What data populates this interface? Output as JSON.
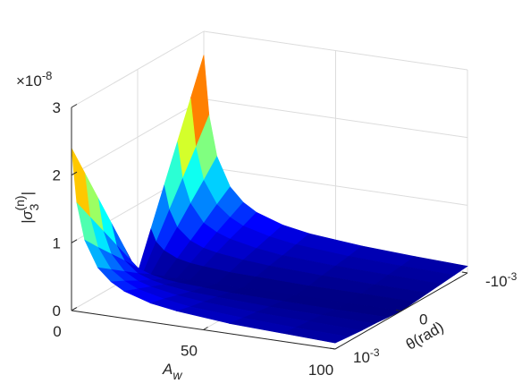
{
  "chart_data": {
    "type": "surface",
    "zlabel": {
      "text": "|σ",
      "sub": "3",
      "sup": "(n)",
      "end": "|"
    },
    "xlabel": {
      "text": "A",
      "sub": "w"
    },
    "ylabel": "θ(rad)",
    "z_multiplier": {
      "text": "×10",
      "exponent": "-8"
    },
    "x": [
      0,
      2,
      5,
      10,
      15,
      20,
      30,
      40,
      60,
      80,
      100
    ],
    "y": [
      -0.001,
      -0.0008,
      -0.0006,
      -0.0004,
      -0.0002,
      0,
      0.0002,
      0.0004,
      0.0006,
      0.0008,
      0.001
    ],
    "z": [
      [
        2.65,
        2.12,
        1.59,
        1.06,
        0.53,
        0,
        0.48,
        0.96,
        1.44,
        1.92,
        2.4
      ],
      [
        1.77,
        1.41,
        1.06,
        0.71,
        0.35,
        0,
        0.32,
        0.64,
        0.96,
        1.28,
        1.6
      ],
      [
        1.18,
        0.94,
        0.71,
        0.47,
        0.24,
        0,
        0.21,
        0.43,
        0.64,
        0.85,
        1.07
      ],
      [
        0.76,
        0.61,
        0.45,
        0.3,
        0.15,
        0,
        0.14,
        0.27,
        0.41,
        0.55,
        0.69
      ],
      [
        0.56,
        0.45,
        0.34,
        0.22,
        0.11,
        0,
        0.1,
        0.2,
        0.3,
        0.41,
        0.51
      ],
      [
        0.44,
        0.35,
        0.27,
        0.18,
        0.09,
        0,
        0.08,
        0.16,
        0.24,
        0.32,
        0.4
      ],
      [
        0.31,
        0.25,
        0.19,
        0.13,
        0.06,
        0,
        0.06,
        0.11,
        0.17,
        0.23,
        0.28
      ],
      [
        0.24,
        0.19,
        0.14,
        0.1,
        0.05,
        0,
        0.04,
        0.09,
        0.13,
        0.17,
        0.22
      ],
      [
        0.17,
        0.13,
        0.1,
        0.07,
        0.03,
        0,
        0.03,
        0.06,
        0.09,
        0.12,
        0.15
      ],
      [
        0.13,
        0.1,
        0.08,
        0.05,
        0.03,
        0,
        0.02,
        0.05,
        0.07,
        0.09,
        0.12
      ],
      [
        0.1,
        0.08,
        0.06,
        0.04,
        0.02,
        0,
        0.02,
        0.04,
        0.05,
        0.07,
        0.09
      ]
    ],
    "colormap": "jet",
    "xlim": [
      0,
      100
    ],
    "xticks": [
      0,
      50,
      100
    ],
    "ylim": [
      -0.001,
      0.001
    ],
    "yticks": [
      {
        "value": -0.001,
        "label": "-10",
        "exponent": "-3"
      },
      0,
      {
        "value": 0.001,
        "label": "10",
        "exponent": "-3"
      }
    ],
    "zlim": [
      0,
      3
    ],
    "zticks": [
      0,
      1,
      2,
      3
    ],
    "grid": true
  }
}
